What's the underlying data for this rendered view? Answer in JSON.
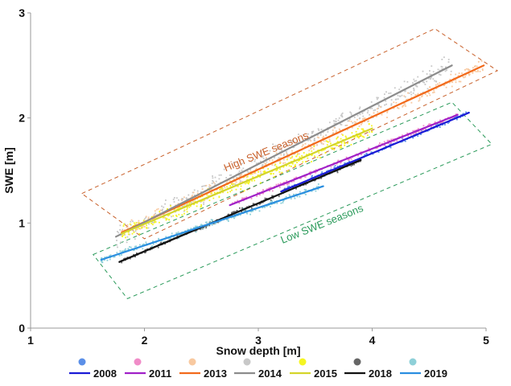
{
  "chart_data": {
    "type": "scatter",
    "title": "",
    "xlabel": "Snow depth [m]",
    "ylabel": "SWE [m]",
    "xlim": [
      1,
      5
    ],
    "ylim": [
      0,
      3
    ],
    "xticks": [
      "1",
      "2",
      "3",
      "4",
      "5"
    ],
    "yticks": [
      "0",
      "1",
      "2",
      "3"
    ],
    "grid": false,
    "legend_position": "bottom",
    "series": [
      {
        "name": "2008",
        "color": "#1a1ad6",
        "dot_color": "#5b8fe8",
        "fit_line": {
          "x": [
            3.2,
            4.85
          ],
          "y": [
            1.3,
            2.05
          ]
        },
        "point_cloud": {
          "x_range": [
            3.2,
            4.85
          ],
          "spread": 0.02
        }
      },
      {
        "name": "2011",
        "color": "#a020c8",
        "dot_color": "#f08cc8",
        "fit_line": {
          "x": [
            2.75,
            4.75
          ],
          "y": [
            1.17,
            2.03
          ]
        },
        "point_cloud": {
          "x_range": [
            2.75,
            4.75
          ],
          "spread": 0.02
        }
      },
      {
        "name": "2013",
        "color": "#f26a1b",
        "dot_color": "#f8c9a0",
        "fit_line": {
          "x": [
            1.8,
            4.98
          ],
          "y": [
            0.91,
            2.5
          ]
        },
        "point_cloud": {
          "x_range": [
            1.8,
            4.98
          ],
          "spread": 0.06
        }
      },
      {
        "name": "2014",
        "color": "#8c8c8c",
        "dot_color": "#c8c8c8",
        "fit_line": {
          "x": [
            1.75,
            4.7
          ],
          "y": [
            0.87,
            2.5
          ]
        },
        "point_cloud": {
          "x_range": [
            1.75,
            4.7
          ],
          "spread": 0.1
        }
      },
      {
        "name": "2015",
        "color": "#d4d42a",
        "dot_color": "#f5f522",
        "fit_line": {
          "x": [
            1.8,
            4.0
          ],
          "y": [
            0.9,
            1.9
          ]
        },
        "point_cloud": {
          "x_range": [
            1.8,
            4.0
          ],
          "spread": 0.07
        }
      },
      {
        "name": "2018",
        "color": "#111111",
        "dot_color": "#666666",
        "fit_line": {
          "x": [
            1.78,
            3.9
          ],
          "y": [
            0.63,
            1.6
          ]
        },
        "point_cloud": {
          "x_range": [
            1.78,
            3.9
          ],
          "spread": 0.02
        }
      },
      {
        "name": "2019",
        "color": "#2a8ee0",
        "dot_color": "#8ed0d8",
        "fit_line": {
          "x": [
            1.62,
            3.57
          ],
          "y": [
            0.65,
            1.35
          ]
        },
        "point_cloud": {
          "x_range": [
            1.62,
            3.57
          ],
          "spread": 0.03
        }
      }
    ],
    "annotations": [
      {
        "text": "High SWE seasons",
        "color": "#c8602a",
        "x": 3.08,
        "y": 1.65,
        "rotation": -22,
        "box_corners": [
          [
            1.45,
            1.28
          ],
          [
            4.55,
            2.85
          ],
          [
            5.1,
            2.45
          ],
          [
            2.0,
            0.85
          ]
        ]
      },
      {
        "text": "Low SWE seasons",
        "color": "#2a9a5a",
        "x": 3.57,
        "y": 0.96,
        "rotation": -22,
        "box_corners": [
          [
            1.55,
            0.7
          ],
          [
            4.7,
            2.15
          ],
          [
            5.05,
            1.75
          ],
          [
            1.85,
            0.28
          ]
        ]
      }
    ]
  }
}
